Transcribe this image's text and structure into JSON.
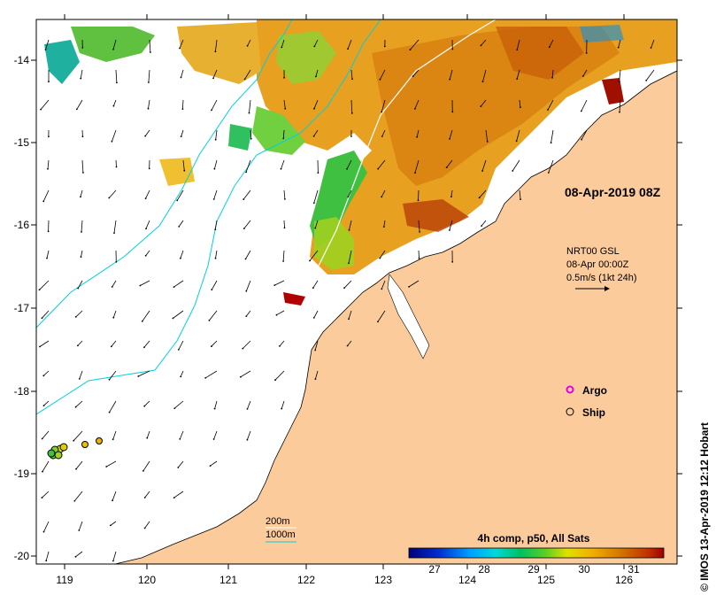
{
  "date_label": "08-Apr-2019 08Z",
  "current_legend": {
    "line1": "NRT00 GSL",
    "line2": "08-Apr 00:00Z",
    "line3": "0.5m/s (1kt 24h)"
  },
  "markers": [
    {
      "label": "Argo",
      "color": "#e000e0"
    },
    {
      "label": "Ship",
      "color": "#000000"
    }
  ],
  "contours": [
    {
      "label": "200m",
      "color": "#ffffff"
    },
    {
      "label": "1000m",
      "color": "#00d0e0"
    }
  ],
  "colorbar": {
    "title": "4h comp, p50, All Sats",
    "ticks": [
      "27",
      "28",
      "29",
      "30",
      "31"
    ]
  },
  "y_ticks": [
    "-14",
    "-15",
    "-16",
    "-17",
    "-18",
    "-19",
    "-20"
  ],
  "x_ticks": [
    "119",
    "120",
    "121",
    "122",
    "123",
    "124",
    "125",
    "126"
  ],
  "credit": "© IMOS 13-Apr-2019 12:12 Hobart",
  "colors": {
    "land": "#fccb9c",
    "ocean": "#ffffff",
    "contour_1000m": "#00d0e0"
  }
}
